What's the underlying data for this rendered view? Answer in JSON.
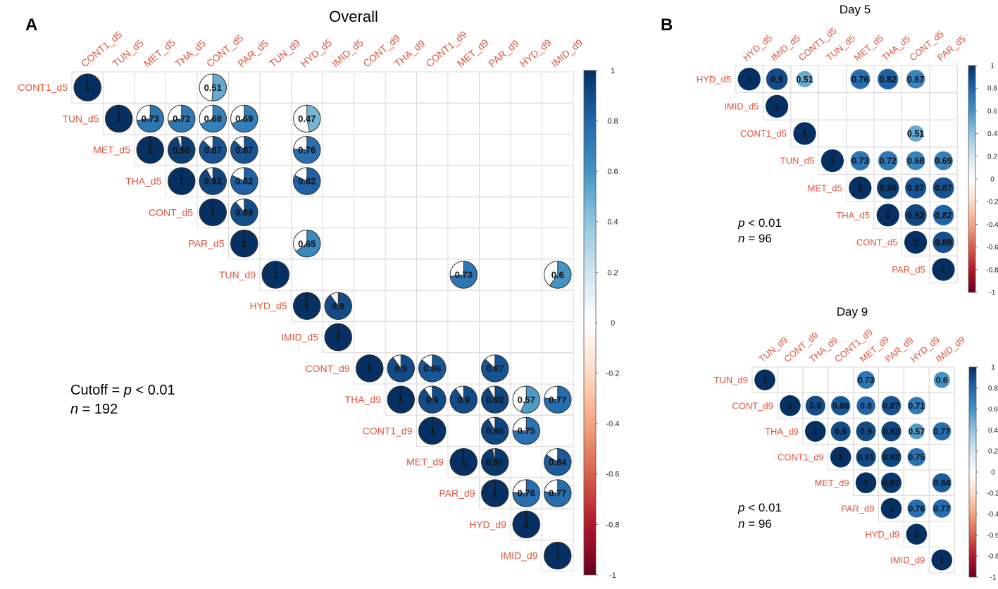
{
  "chart_data": [
    {
      "id": "overall",
      "type": "heatmap",
      "panel_label": "A",
      "title": "Overall",
      "cell_glyph": "pie",
      "row_labels": [
        "CONT1_d5",
        "TUN_d5",
        "MET_d5",
        "THA_d5",
        "CONT_d5",
        "PAR_d5",
        "TUN_d9",
        "HYD_d5",
        "IMID_d5",
        "CONT_d9",
        "THA_d9",
        "CONT1_d9",
        "MET_d9",
        "PAR_d9",
        "HYD_d9",
        "IMID_d9"
      ],
      "col_labels": [
        "CONT1_d5",
        "TUN_d5",
        "MET_d5",
        "THA_d5",
        "CONT_d5",
        "PAR_d5",
        "TUN_d9",
        "HYD_d5",
        "IMID_d5",
        "CONT_d9",
        "THA_d9",
        "CONT1_d9",
        "MET_d9",
        "PAR_d9",
        "HYD_d9",
        "IMID_d9"
      ],
      "cells": [
        [
          0,
          0,
          1
        ],
        [
          0,
          4,
          0.51
        ],
        [
          1,
          1,
          1
        ],
        [
          1,
          2,
          0.73
        ],
        [
          1,
          3,
          0.72
        ],
        [
          1,
          4,
          0.68
        ],
        [
          1,
          5,
          0.69
        ],
        [
          1,
          7,
          0.47
        ],
        [
          2,
          2,
          1
        ],
        [
          2,
          3,
          0.95
        ],
        [
          2,
          4,
          0.87
        ],
        [
          2,
          5,
          0.87
        ],
        [
          2,
          7,
          0.76
        ],
        [
          3,
          3,
          1
        ],
        [
          3,
          4,
          0.92
        ],
        [
          3,
          5,
          0.82
        ],
        [
          3,
          7,
          0.82
        ],
        [
          4,
          4,
          1
        ],
        [
          4,
          5,
          0.89
        ],
        [
          5,
          5,
          1
        ],
        [
          5,
          7,
          0.65
        ],
        [
          6,
          6,
          1
        ],
        [
          6,
          12,
          0.73
        ],
        [
          6,
          15,
          0.6
        ],
        [
          7,
          7,
          1
        ],
        [
          7,
          8,
          0.9
        ],
        [
          8,
          8,
          1
        ],
        [
          9,
          9,
          1
        ],
        [
          9,
          10,
          0.9
        ],
        [
          9,
          11,
          0.86
        ],
        [
          9,
          13,
          0.87
        ],
        [
          10,
          10,
          1
        ],
        [
          10,
          11,
          0.9
        ],
        [
          10,
          12,
          0.9
        ],
        [
          10,
          13,
          0.92
        ],
        [
          10,
          14,
          0.57
        ],
        [
          10,
          15,
          0.77
        ],
        [
          11,
          11,
          1
        ],
        [
          11,
          13,
          0.92
        ],
        [
          11,
          14,
          0.75
        ],
        [
          12,
          12,
          1
        ],
        [
          12,
          13,
          0.97
        ],
        [
          12,
          15,
          0.84
        ],
        [
          13,
          13,
          1
        ],
        [
          13,
          14,
          0.76
        ],
        [
          13,
          15,
          0.77
        ],
        [
          14,
          14,
          1
        ],
        [
          15,
          15,
          1
        ]
      ],
      "color_scale": {
        "min": -1,
        "max": 1,
        "ticks": [
          "1",
          "0.8",
          "0.6",
          "0.4",
          "0.2",
          "0",
          "-0.2",
          "-0.4",
          "-0.6",
          "-0.8",
          "-1"
        ]
      },
      "annotation": {
        "line1_prefix": "Cutoff = ",
        "line1_p": "p",
        "line1_suffix": " < 0.01",
        "line2_n": "n",
        "line2_suffix": " = 192"
      }
    },
    {
      "id": "day5",
      "type": "heatmap",
      "panel_label": "B",
      "title": "Day 5",
      "cell_glyph": "circle",
      "row_labels": [
        "HYD_d5",
        "IMID_d5",
        "CONT1_d5",
        "TUN_d5",
        "MET_d5",
        "THA_d5",
        "CONT_d5",
        "PAR_d5"
      ],
      "col_labels": [
        "HYD_d5",
        "IMID_d5",
        "CONT1_d5",
        "TUN_d5",
        "MET_d5",
        "THA_d5",
        "CONT_d5",
        "PAR_d5"
      ],
      "cells": [
        [
          0,
          0,
          1
        ],
        [
          0,
          1,
          0.9
        ],
        [
          0,
          2,
          0.51
        ],
        [
          0,
          4,
          0.76
        ],
        [
          0,
          5,
          0.82
        ],
        [
          0,
          6,
          0.67
        ],
        [
          1,
          1,
          1
        ],
        [
          2,
          2,
          1
        ],
        [
          2,
          6,
          0.51
        ],
        [
          3,
          3,
          1
        ],
        [
          3,
          4,
          0.73
        ],
        [
          3,
          5,
          0.72
        ],
        [
          3,
          6,
          0.68
        ],
        [
          3,
          7,
          0.69
        ],
        [
          4,
          4,
          1
        ],
        [
          4,
          5,
          0.95
        ],
        [
          4,
          6,
          0.87
        ],
        [
          4,
          7,
          0.87
        ],
        [
          5,
          5,
          1
        ],
        [
          5,
          6,
          0.92
        ],
        [
          5,
          7,
          0.82
        ],
        [
          6,
          6,
          1
        ],
        [
          6,
          7,
          0.89
        ],
        [
          7,
          7,
          1
        ]
      ],
      "color_scale": {
        "min": -1,
        "max": 1,
        "ticks": [
          "1",
          "0.8",
          "0.6",
          "0.4",
          "0.2",
          "0",
          "-0.2",
          "-0.4",
          "-0.6",
          "-0.8",
          "-1"
        ]
      },
      "annotation": {
        "line1_p": "p",
        "line1_suffix": " < 0.01",
        "line2_n": "n",
        "line2_suffix": " = 96"
      }
    },
    {
      "id": "day9",
      "type": "heatmap",
      "panel_label": "",
      "title": "Day 9",
      "cell_glyph": "circle",
      "row_labels": [
        "TUN_d9",
        "CONT_d9",
        "THA_d9",
        "CONT1_d9",
        "MET_d9",
        "PAR_d9",
        "HYD_d9",
        "IMID_d9"
      ],
      "col_labels": [
        "TUN_d9",
        "CONT_d9",
        "THA_d9",
        "CONT1_d9",
        "MET_d9",
        "PAR_d9",
        "HYD_d9",
        "IMID_d9"
      ],
      "cells": [
        [
          0,
          0,
          1
        ],
        [
          0,
          4,
          0.73
        ],
        [
          0,
          7,
          0.6
        ],
        [
          1,
          1,
          1
        ],
        [
          1,
          2,
          0.9
        ],
        [
          1,
          3,
          0.86
        ],
        [
          1,
          4,
          0.8
        ],
        [
          1,
          5,
          0.87
        ],
        [
          1,
          6,
          0.71
        ],
        [
          2,
          2,
          1
        ],
        [
          2,
          3,
          0.9
        ],
        [
          2,
          4,
          0.9
        ],
        [
          2,
          5,
          0.92
        ],
        [
          2,
          6,
          0.57
        ],
        [
          2,
          7,
          0.77
        ],
        [
          3,
          3,
          1
        ],
        [
          3,
          4,
          0.91
        ],
        [
          3,
          5,
          0.92
        ],
        [
          3,
          6,
          0.75
        ],
        [
          4,
          4,
          1
        ],
        [
          4,
          5,
          0.97
        ],
        [
          4,
          7,
          0.84
        ],
        [
          5,
          5,
          1
        ],
        [
          5,
          6,
          0.76
        ],
        [
          5,
          7,
          0.77
        ],
        [
          6,
          6,
          1
        ],
        [
          7,
          7,
          1
        ]
      ],
      "color_scale": {
        "min": -1,
        "max": 1,
        "ticks": [
          "1",
          "0.8",
          "0.6",
          "0.4",
          "0.2",
          "0",
          "-0.2",
          "-0.4",
          "-0.6",
          "-0.8",
          "-1"
        ]
      },
      "annotation": {
        "line1_p": "p",
        "line1_suffix": " < 0.01",
        "line2_n": "n",
        "line2_suffix": " = 96"
      }
    }
  ],
  "colors": {
    "label": "#e0533c",
    "grid": "#d9d9d9",
    "scale_stops": [
      "#053061",
      "#2166ac",
      "#4393c3",
      "#92c5de",
      "#d1e5f0",
      "#ffffff",
      "#fddbc7",
      "#f4a582",
      "#d6604d",
      "#b2182b",
      "#67001f"
    ]
  }
}
